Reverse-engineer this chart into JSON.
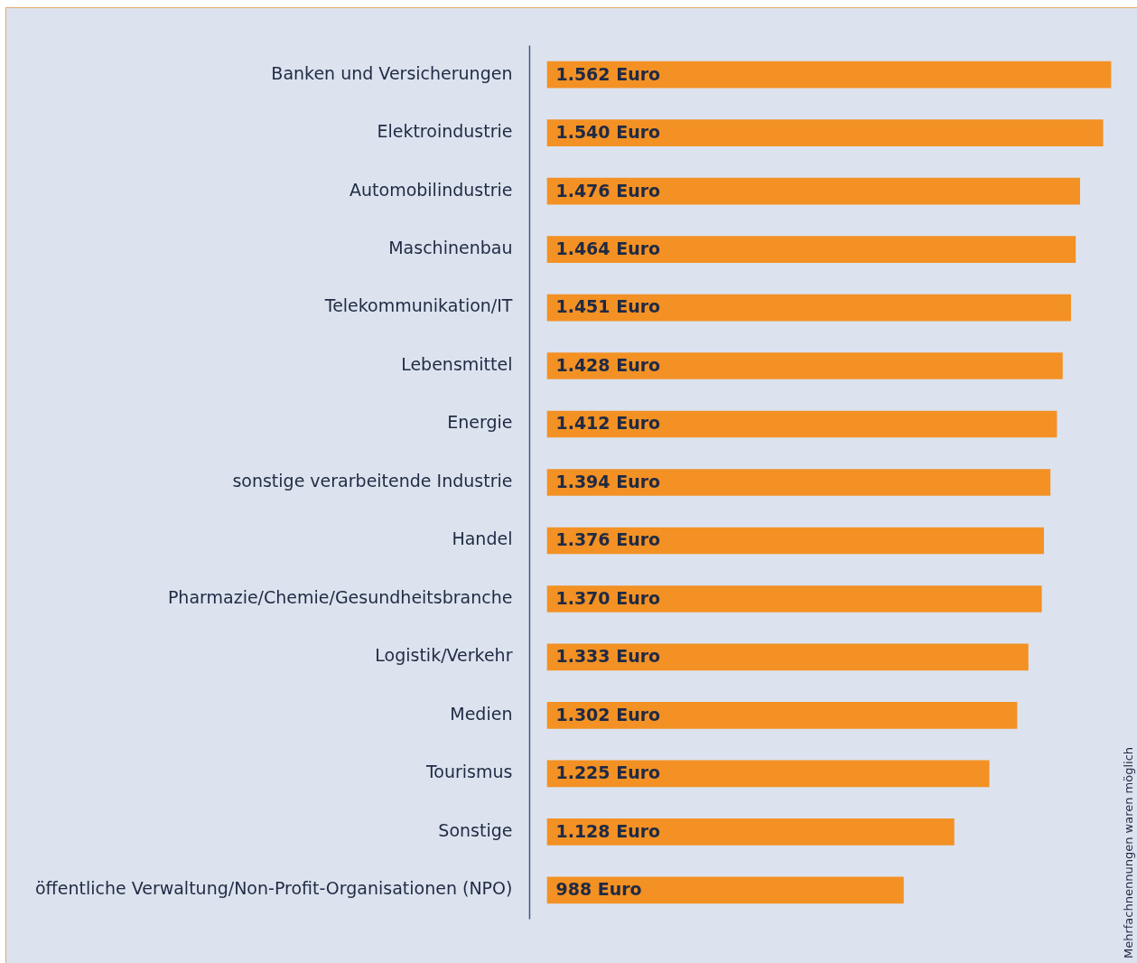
{
  "chart_data": {
    "type": "bar",
    "orientation": "horizontal",
    "categories": [
      "Banken und Versicherungen",
      "Elektroindustrie",
      "Automobilindustrie",
      "Maschinenbau",
      "Telekommunikation/IT",
      "Lebensmittel",
      "Energie",
      "sonstige verarbeitende Industrie",
      "Handel",
      "Pharmazie/Chemie/Gesundheitsbranche",
      "Logistik/Verkehr",
      "Medien",
      "Tourismus",
      "Sonstige",
      "öffentliche Verwaltung/Non-Profit-Organisationen (NPO)"
    ],
    "values": [
      1562,
      1540,
      1476,
      1464,
      1451,
      1428,
      1412,
      1394,
      1376,
      1370,
      1333,
      1302,
      1225,
      1128,
      988
    ],
    "value_labels": [
      "1.562 Euro",
      "1.540 Euro",
      "1.476 Euro",
      "1.464 Euro",
      "1.451 Euro",
      "1.428 Euro",
      "1.412 Euro",
      "1.394 Euro",
      "1.376 Euro",
      "1.370 Euro",
      "1.333 Euro",
      "1.302 Euro",
      "1.225 Euro",
      "1.128 Euro",
      "988 Euro"
    ],
    "color": "#f39124",
    "annotations": [
      "Mehrfachnennungen waren möglich"
    ],
    "grid": false,
    "legend": false,
    "tick_labels": "y"
  }
}
